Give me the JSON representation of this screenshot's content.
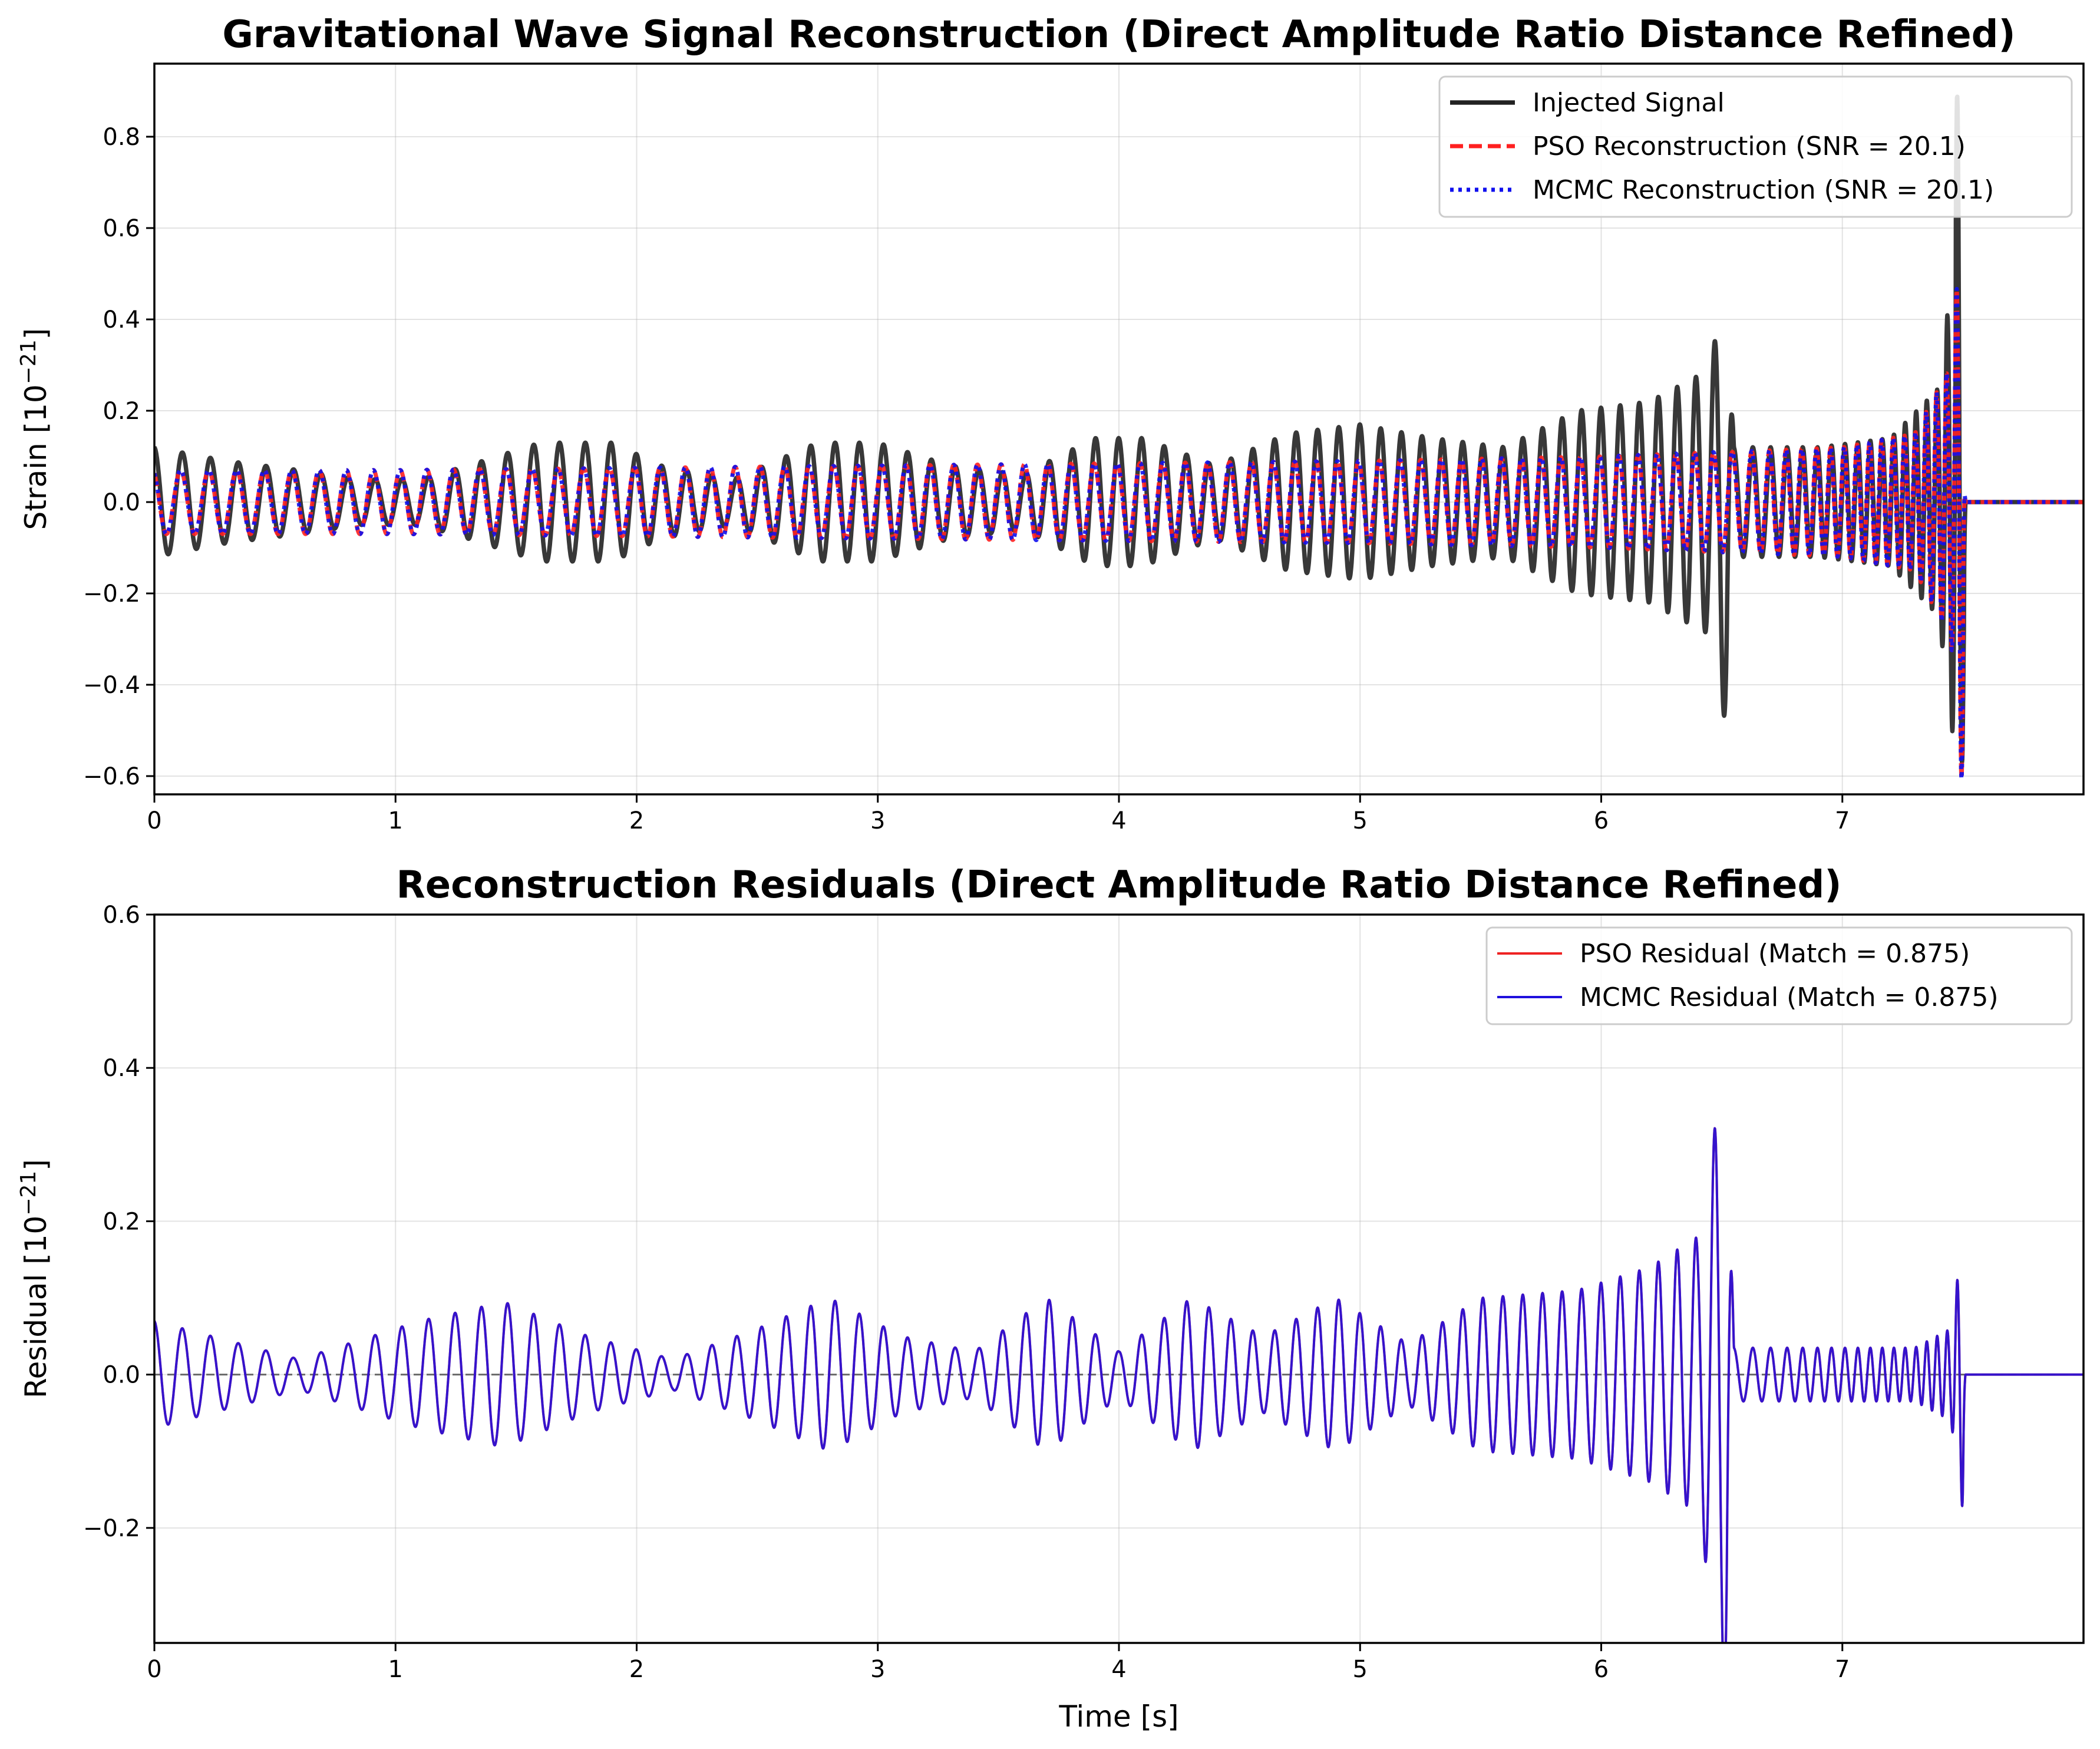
{
  "chart_data": [
    {
      "type": "line",
      "title": "Gravitational Wave Signal Reconstruction (Direct Amplitude Ratio Distance Refined)",
      "xlabel": "",
      "ylabel": "Strain [10",
      "ylabel_exp": "−21",
      "ylabel_close": "]",
      "xlim": [
        0,
        8.0
      ],
      "ylim": [
        -0.64,
        0.96
      ],
      "grid": true,
      "legend_position": "upper right",
      "x_ticks": [
        0,
        1,
        2,
        3,
        4,
        5,
        6,
        7
      ],
      "x_tick_labels": [
        "0",
        "1",
        "2",
        "3",
        "4",
        "5",
        "6",
        "7"
      ],
      "y_ticks": [
        -0.6,
        -0.4,
        -0.2,
        0.0,
        0.2,
        0.4,
        0.6,
        0.8
      ],
      "y_tick_labels": [
        "−0.6",
        "−0.4",
        "−0.2",
        "0.0",
        "0.2",
        "0.4",
        "0.6",
        "0.8"
      ],
      "series": [
        {
          "name": "Injected Signal",
          "color": "#222222",
          "style": "solid",
          "envelope_t": [
            0.0,
            0.3,
            0.6,
            0.85,
            1.1,
            1.3,
            1.6,
            1.9,
            2.1,
            2.4,
            2.75,
            3.0,
            3.3,
            3.6,
            3.9,
            4.1,
            4.4,
            4.7,
            5.0,
            5.3,
            5.6,
            5.9,
            6.2,
            6.45,
            6.52,
            6.55,
            6.9,
            7.2,
            7.4,
            7.5,
            7.51,
            8.0
          ],
          "envelope_amp": [
            0.12,
            0.09,
            0.07,
            0.05,
            0.05,
            0.08,
            0.13,
            0.13,
            0.08,
            0.05,
            0.13,
            0.13,
            0.08,
            0.06,
            0.14,
            0.14,
            0.08,
            0.15,
            0.17,
            0.14,
            0.12,
            0.2,
            0.22,
            0.29,
            0.5,
            0.12,
            0.12,
            0.14,
            0.25,
            0.7,
            0.0,
            0.0
          ],
          "freq_t": [
            0.0,
            4.0,
            6.5,
            6.55,
            7.5,
            7.51,
            8.0
          ],
          "freq_hz": [
            8.5,
            10.5,
            13.0,
            12.0,
            25.0,
            0.0,
            0.0
          ],
          "peak_values": {
            "max_near_7_5": 0.89,
            "min_near_7_5": -0.57,
            "min_near_6_5": -0.56
          }
        },
        {
          "name": "PSO Reconstruction (SNR = 20.1)",
          "color": "#ff2020",
          "style": "dashed",
          "envelope_t": [
            0.0,
            1.0,
            2.0,
            3.0,
            4.0,
            5.0,
            6.0,
            6.5,
            6.55,
            7.0,
            7.3,
            7.45,
            7.5,
            7.51,
            8.0
          ],
          "envelope_amp": [
            0.07,
            0.07,
            0.075,
            0.08,
            0.085,
            0.09,
            0.1,
            0.11,
            0.11,
            0.12,
            0.15,
            0.3,
            0.65,
            0.0,
            0.0
          ]
        },
        {
          "name": "MCMC Reconstruction (SNR = 20.1)",
          "color": "#1010ee",
          "style": "dotted",
          "envelope_t": [
            0.0,
            1.0,
            2.0,
            3.0,
            4.0,
            5.0,
            6.0,
            6.5,
            6.55,
            7.0,
            7.3,
            7.45,
            7.5,
            7.51,
            8.0
          ],
          "envelope_amp": [
            0.07,
            0.07,
            0.075,
            0.08,
            0.085,
            0.09,
            0.1,
            0.11,
            0.11,
            0.12,
            0.15,
            0.3,
            0.65,
            0.0,
            0.0
          ]
        }
      ]
    },
    {
      "type": "line",
      "title": "Reconstruction Residuals (Direct Amplitude Ratio Distance Refined)",
      "xlabel": "Time [s]",
      "ylabel": "Residual [10",
      "ylabel_exp": "−21",
      "ylabel_close": "]",
      "xlim": [
        0,
        8.0
      ],
      "ylim": [
        -0.35,
        0.6
      ],
      "grid": true,
      "legend_position": "upper right",
      "x_ticks": [
        0,
        1,
        2,
        3,
        4,
        5,
        6,
        7
      ],
      "x_tick_labels": [
        "0",
        "1",
        "2",
        "3",
        "4",
        "5",
        "6",
        "7"
      ],
      "y_ticks": [
        -0.2,
        0.0,
        0.2,
        0.4,
        0.6
      ],
      "y_tick_labels": [
        "−0.2",
        "0.0",
        "0.2",
        "0.4",
        "0.6"
      ],
      "zero_line": {
        "color": "#000000",
        "style": "dashed"
      },
      "series": [
        {
          "name": "PSO Residual (Match = 0.875)",
          "color": "#ee2222",
          "style": "solid",
          "envelope_t": [
            0.0,
            0.3,
            0.6,
            0.8,
            1.1,
            1.45,
            1.8,
            2.15,
            2.5,
            2.8,
            3.1,
            3.4,
            3.7,
            4.0,
            4.3,
            4.6,
            4.9,
            5.2,
            5.5,
            5.9,
            6.2,
            6.4,
            6.5,
            6.52,
            6.55,
            7.3,
            7.45,
            7.5,
            7.51,
            8.0
          ],
          "envelope_amp": [
            0.07,
            0.045,
            0.02,
            0.04,
            0.07,
            0.095,
            0.05,
            0.02,
            0.06,
            0.1,
            0.05,
            0.03,
            0.1,
            0.03,
            0.1,
            0.05,
            0.1,
            0.04,
            0.1,
            0.11,
            0.14,
            0.18,
            0.38,
            0.45,
            0.035,
            0.035,
            0.06,
            0.18,
            0.0,
            0.0
          ],
          "freq_t": [
            0.0,
            4.0,
            6.5,
            6.55,
            7.5,
            7.51,
            8.0
          ],
          "freq_hz": [
            8.5,
            10.5,
            13.0,
            12.0,
            25.0,
            0.0,
            0.0
          ]
        },
        {
          "name": "MCMC Residual (Match = 0.875)",
          "color": "#2010dd",
          "style": "solid",
          "envelope_t": [
            0.0,
            0.3,
            0.6,
            0.8,
            1.1,
            1.45,
            1.8,
            2.15,
            2.5,
            2.8,
            3.1,
            3.4,
            3.7,
            4.0,
            4.3,
            4.6,
            4.9,
            5.2,
            5.5,
            5.9,
            6.2,
            6.4,
            6.5,
            6.52,
            6.55,
            7.3,
            7.45,
            7.5,
            7.51,
            8.0
          ],
          "envelope_amp": [
            0.07,
            0.045,
            0.02,
            0.04,
            0.07,
            0.095,
            0.05,
            0.02,
            0.06,
            0.1,
            0.05,
            0.03,
            0.1,
            0.03,
            0.1,
            0.05,
            0.1,
            0.04,
            0.1,
            0.11,
            0.14,
            0.18,
            0.38,
            0.45,
            0.035,
            0.035,
            0.06,
            0.18,
            0.0,
            0.0
          ],
          "freq_t": [
            0.0,
            4.0,
            6.5,
            6.55,
            7.5,
            7.51,
            8.0
          ],
          "freq_hz": [
            8.5,
            10.5,
            13.0,
            12.0,
            25.0,
            0.0,
            0.0
          ]
        }
      ]
    }
  ]
}
